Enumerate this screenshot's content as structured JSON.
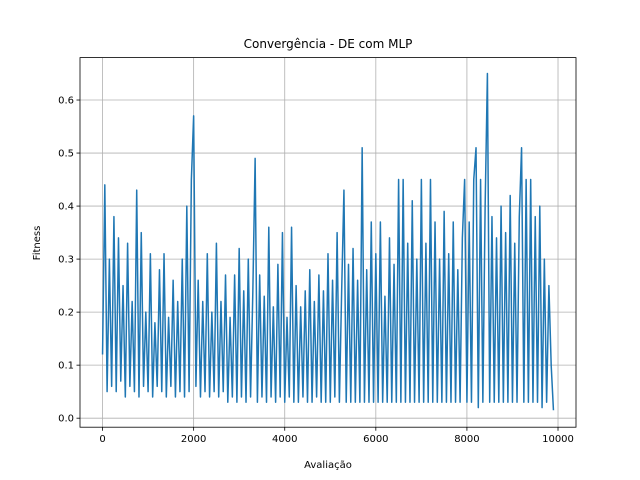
{
  "chart_data": {
    "type": "line",
    "title": "Convergência - DE com MLP",
    "xlabel": "Avaliação",
    "ylabel": "Fitness",
    "color": "#1f77b4",
    "grid": true,
    "xlim": [
      -495,
      10395
    ],
    "xticks": [
      0,
      2000,
      4000,
      6000,
      8000,
      10000
    ],
    "ylim": [
      -0.017,
      0.68
    ],
    "yticks": [
      {
        "value": 0,
        "label": "0.0"
      },
      {
        "value": 0.1,
        "label": "0.1"
      },
      {
        "value": 0.2,
        "label": "0.2"
      },
      {
        "value": 0.3,
        "label": "0.3"
      },
      {
        "value": 0.4,
        "label": "0.4"
      },
      {
        "value": 0.5,
        "label": "0.5"
      },
      {
        "value": 0.6,
        "label": "0.6"
      }
    ],
    "x": [
      0,
      50,
      100,
      150,
      200,
      250,
      300,
      350,
      400,
      450,
      500,
      550,
      600,
      650,
      700,
      750,
      800,
      850,
      900,
      950,
      1000,
      1050,
      1100,
      1150,
      1200,
      1250,
      1300,
      1350,
      1400,
      1450,
      1500,
      1550,
      1600,
      1650,
      1700,
      1750,
      1800,
      1850,
      1900,
      1950,
      2000,
      2050,
      2100,
      2150,
      2200,
      2250,
      2300,
      2350,
      2400,
      2450,
      2500,
      2550,
      2600,
      2650,
      2700,
      2750,
      2800,
      2850,
      2900,
      2950,
      3000,
      3050,
      3100,
      3150,
      3200,
      3250,
      3300,
      3350,
      3400,
      3450,
      3500,
      3550,
      3600,
      3650,
      3700,
      3750,
      3800,
      3850,
      3900,
      3950,
      4000,
      4050,
      4100,
      4150,
      4200,
      4250,
      4300,
      4350,
      4400,
      4450,
      4500,
      4550,
      4600,
      4650,
      4700,
      4750,
      4800,
      4850,
      4900,
      4950,
      5000,
      5050,
      5100,
      5150,
      5200,
      5250,
      5300,
      5350,
      5400,
      5450,
      5500,
      5550,
      5600,
      5650,
      5700,
      5750,
      5800,
      5850,
      5900,
      5950,
      6000,
      6050,
      6100,
      6150,
      6200,
      6250,
      6300,
      6350,
      6400,
      6450,
      6500,
      6550,
      6600,
      6650,
      6700,
      6750,
      6800,
      6850,
      6900,
      6950,
      7000,
      7050,
      7100,
      7150,
      7200,
      7250,
      7300,
      7350,
      7400,
      7450,
      7500,
      7550,
      7600,
      7650,
      7700,
      7750,
      7800,
      7850,
      7900,
      7950,
      8000,
      8050,
      8100,
      8150,
      8200,
      8250,
      8300,
      8350,
      8400,
      8450,
      8500,
      8550,
      8600,
      8650,
      8700,
      8750,
      8800,
      8850,
      8900,
      8950,
      9000,
      9050,
      9100,
      9150,
      9200,
      9250,
      9300,
      9350,
      9400,
      9450,
      9500,
      9550,
      9600,
      9650,
      9700,
      9750,
      9800,
      9850,
      9900
    ],
    "values": [
      0.12,
      0.44,
      0.05,
      0.3,
      0.06,
      0.38,
      0.05,
      0.34,
      0.07,
      0.25,
      0.04,
      0.33,
      0.06,
      0.22,
      0.05,
      0.43,
      0.04,
      0.35,
      0.06,
      0.2,
      0.05,
      0.31,
      0.04,
      0.18,
      0.06,
      0.28,
      0.05,
      0.31,
      0.04,
      0.19,
      0.06,
      0.26,
      0.04,
      0.22,
      0.05,
      0.3,
      0.04,
      0.4,
      0.05,
      0.45,
      0.57,
      0.06,
      0.26,
      0.04,
      0.22,
      0.05,
      0.31,
      0.04,
      0.2,
      0.05,
      0.33,
      0.04,
      0.22,
      0.05,
      0.27,
      0.03,
      0.19,
      0.04,
      0.27,
      0.03,
      0.32,
      0.04,
      0.24,
      0.03,
      0.3,
      0.04,
      0.24,
      0.49,
      0.03,
      0.27,
      0.04,
      0.23,
      0.03,
      0.36,
      0.04,
      0.21,
      0.03,
      0.29,
      0.04,
      0.35,
      0.03,
      0.19,
      0.04,
      0.36,
      0.03,
      0.25,
      0.03,
      0.21,
      0.04,
      0.24,
      0.03,
      0.28,
      0.03,
      0.22,
      0.04,
      0.27,
      0.03,
      0.24,
      0.03,
      0.31,
      0.03,
      0.26,
      0.04,
      0.35,
      0.03,
      0.24,
      0.43,
      0.03,
      0.29,
      0.03,
      0.32,
      0.03,
      0.26,
      0.03,
      0.51,
      0.03,
      0.28,
      0.03,
      0.37,
      0.03,
      0.31,
      0.03,
      0.37,
      0.03,
      0.23,
      0.03,
      0.34,
      0.03,
      0.29,
      0.03,
      0.45,
      0.03,
      0.45,
      0.03,
      0.33,
      0.03,
      0.41,
      0.03,
      0.3,
      0.03,
      0.45,
      0.03,
      0.33,
      0.03,
      0.45,
      0.03,
      0.37,
      0.03,
      0.3,
      0.03,
      0.39,
      0.03,
      0.31,
      0.03,
      0.37,
      0.03,
      0.28,
      0.03,
      0.34,
      0.45,
      0.03,
      0.37,
      0.03,
      0.45,
      0.51,
      0.02,
      0.45,
      0.03,
      0.4,
      0.65,
      0.03,
      0.38,
      0.03,
      0.34,
      0.03,
      0.4,
      0.03,
      0.35,
      0.03,
      0.42,
      0.03,
      0.33,
      0.03,
      0.38,
      0.51,
      0.03,
      0.45,
      0.03,
      0.45,
      0.03,
      0.38,
      0.03,
      0.4,
      0.02,
      0.3,
      0.03,
      0.25,
      0.1,
      0.015
    ]
  }
}
